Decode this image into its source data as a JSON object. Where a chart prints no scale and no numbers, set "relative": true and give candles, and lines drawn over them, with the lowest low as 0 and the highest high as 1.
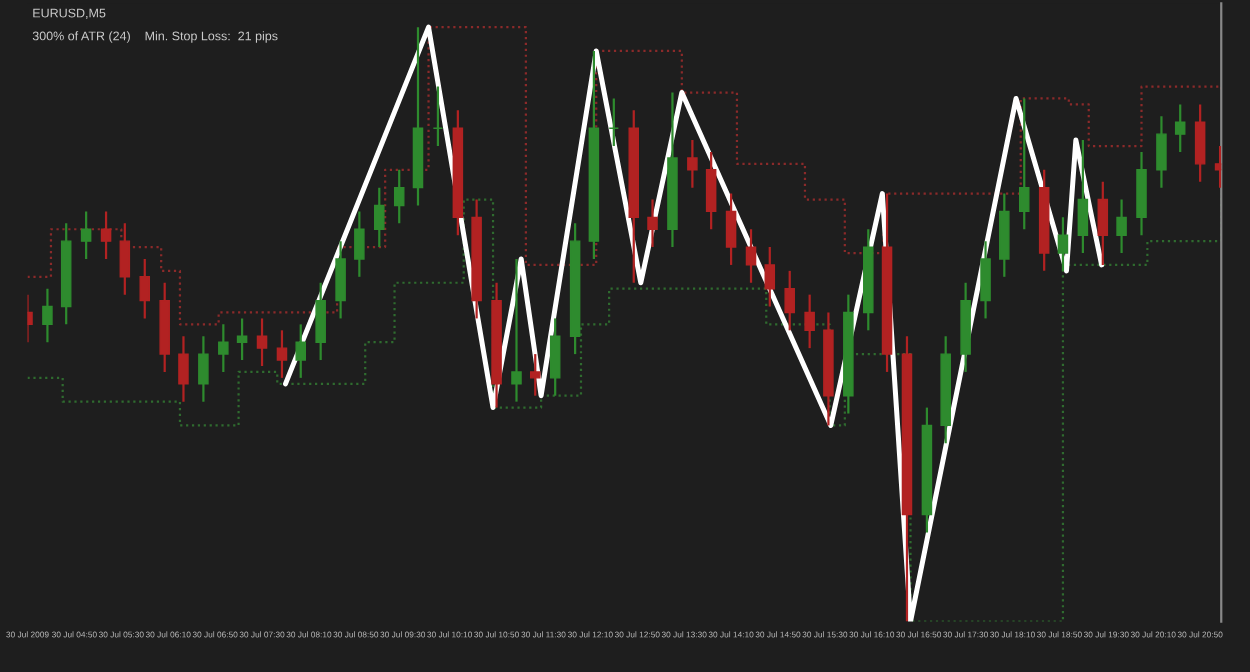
{
  "chart_data": {
    "type": "candlestick",
    "relative": true,
    "title": "EURUSD,M5",
    "annotations": [
      "300% of ATR (24)    Min. Stop Loss:  21 pips"
    ],
    "x": [
      "2009-07-30T04:10",
      "2009-07-30T04:27",
      "2009-07-30T04:43",
      "2009-07-30T05:00",
      "2009-07-30T05:17",
      "2009-07-30T05:33",
      "2009-07-30T05:50",
      "2009-07-30T06:07",
      "2009-07-30T06:23",
      "2009-07-30T06:40",
      "2009-07-30T06:57",
      "2009-07-30T07:13",
      "2009-07-30T07:30",
      "2009-07-30T07:47",
      "2009-07-30T08:03",
      "2009-07-30T08:20",
      "2009-07-30T08:37",
      "2009-07-30T08:53",
      "2009-07-30T09:10",
      "2009-07-30T09:27",
      "2009-07-30T09:43",
      "2009-07-30T10:00",
      "2009-07-30T10:17",
      "2009-07-30T10:33",
      "2009-07-30T10:50",
      "2009-07-30T11:07",
      "2009-07-30T11:23",
      "2009-07-30T11:40",
      "2009-07-30T11:57",
      "2009-07-30T12:13",
      "2009-07-30T12:30",
      "2009-07-30T12:47",
      "2009-07-30T13:03",
      "2009-07-30T13:20",
      "2009-07-30T13:37",
      "2009-07-30T13:53",
      "2009-07-30T14:10",
      "2009-07-30T14:27",
      "2009-07-30T14:43",
      "2009-07-30T15:00",
      "2009-07-30T15:17",
      "2009-07-30T15:33",
      "2009-07-30T15:50",
      "2009-07-30T16:07",
      "2009-07-30T16:23",
      "2009-07-30T16:40",
      "2009-07-30T16:57",
      "2009-07-30T17:13",
      "2009-07-30T17:30",
      "2009-07-30T17:47",
      "2009-07-30T18:03",
      "2009-07-30T18:20",
      "2009-07-30T18:37",
      "2009-07-30T18:53",
      "2009-07-30T19:10",
      "2009-07-30T19:27",
      "2009-07-30T19:43",
      "2009-07-30T20:00",
      "2009-07-30T20:17",
      "2009-07-30T20:33",
      "2009-07-30T20:50",
      "2009-07-30T21:07"
    ],
    "ohlc": [
      [
        0.52,
        0.55,
        0.47,
        0.5
      ],
      [
        0.5,
        0.56,
        0.47,
        0.53
      ],
      [
        0.53,
        0.67,
        0.5,
        0.64
      ],
      [
        0.64,
        0.69,
        0.61,
        0.66
      ],
      [
        0.66,
        0.69,
        0.61,
        0.64
      ],
      [
        0.64,
        0.67,
        0.55,
        0.58
      ],
      [
        0.58,
        0.61,
        0.51,
        0.54
      ],
      [
        0.54,
        0.57,
        0.42,
        0.45
      ],
      [
        0.45,
        0.48,
        0.37,
        0.4
      ],
      [
        0.4,
        0.48,
        0.37,
        0.45
      ],
      [
        0.45,
        0.5,
        0.42,
        0.47
      ],
      [
        0.47,
        0.51,
        0.44,
        0.48
      ],
      [
        0.48,
        0.51,
        0.43,
        0.46
      ],
      [
        0.46,
        0.49,
        0.41,
        0.44
      ],
      [
        0.44,
        0.5,
        0.41,
        0.47
      ],
      [
        0.47,
        0.57,
        0.44,
        0.54
      ],
      [
        0.54,
        0.64,
        0.51,
        0.61
      ],
      [
        0.61,
        0.69,
        0.58,
        0.66
      ],
      [
        0.66,
        0.73,
        0.63,
        0.7
      ],
      [
        0.7,
        0.76,
        0.67,
        0.73
      ],
      [
        0.73,
        1.0,
        0.7,
        0.83
      ],
      [
        0.83,
        0.9,
        0.8,
        0.83
      ],
      [
        0.83,
        0.86,
        0.65,
        0.68
      ],
      [
        0.68,
        0.71,
        0.51,
        0.54
      ],
      [
        0.54,
        0.57,
        0.36,
        0.4
      ],
      [
        0.4,
        0.61,
        0.37,
        0.42
      ],
      [
        0.42,
        0.45,
        0.38,
        0.41
      ],
      [
        0.41,
        0.51,
        0.38,
        0.48
      ],
      [
        0.48,
        0.67,
        0.45,
        0.64
      ],
      [
        0.64,
        0.96,
        0.61,
        0.83
      ],
      [
        0.83,
        0.88,
        0.8,
        0.83
      ],
      [
        0.83,
        0.86,
        0.57,
        0.68
      ],
      [
        0.68,
        0.71,
        0.63,
        0.66
      ],
      [
        0.66,
        0.89,
        0.63,
        0.78
      ],
      [
        0.78,
        0.81,
        0.73,
        0.76
      ],
      [
        0.76,
        0.79,
        0.66,
        0.69
      ],
      [
        0.69,
        0.72,
        0.6,
        0.63
      ],
      [
        0.63,
        0.66,
        0.57,
        0.6
      ],
      [
        0.6,
        0.63,
        0.53,
        0.56
      ],
      [
        0.56,
        0.59,
        0.49,
        0.52
      ],
      [
        0.52,
        0.55,
        0.46,
        0.49
      ],
      [
        0.49,
        0.52,
        0.33,
        0.38
      ],
      [
        0.38,
        0.55,
        0.35,
        0.52
      ],
      [
        0.52,
        0.66,
        0.49,
        0.63
      ],
      [
        0.63,
        0.72,
        0.42,
        0.45
      ],
      [
        0.45,
        0.48,
        0.0,
        0.18
      ],
      [
        0.18,
        0.36,
        0.15,
        0.33
      ],
      [
        0.33,
        0.48,
        0.3,
        0.45
      ],
      [
        0.45,
        0.57,
        0.42,
        0.54
      ],
      [
        0.54,
        0.64,
        0.51,
        0.61
      ],
      [
        0.61,
        0.72,
        0.58,
        0.69
      ],
      [
        0.69,
        0.88,
        0.66,
        0.73
      ],
      [
        0.73,
        0.76,
        0.59,
        0.62
      ],
      [
        0.62,
        0.68,
        0.59,
        0.65
      ],
      [
        0.65,
        0.81,
        0.62,
        0.71
      ],
      [
        0.71,
        0.74,
        0.6,
        0.65
      ],
      [
        0.65,
        0.71,
        0.62,
        0.68
      ],
      [
        0.68,
        0.79,
        0.65,
        0.76
      ],
      [
        0.76,
        0.85,
        0.73,
        0.82
      ],
      [
        0.82,
        0.87,
        0.79,
        0.84
      ],
      [
        0.84,
        0.87,
        0.74,
        0.77
      ],
      [
        0.77,
        0.8,
        0.73,
        0.76
      ]
    ],
    "series": [
      {
        "type": "step",
        "color": "#8b2a2a",
        "line_style": "dotted",
        "x": [
          "2009-07-30T04:10",
          "2009-07-30T04:30",
          "2009-07-30T05:30",
          "2009-07-30T06:04",
          "2009-07-30T06:20",
          "2009-07-30T06:53",
          "2009-07-30T08:08",
          "2009-07-30T08:34",
          "2009-07-30T09:15",
          "2009-07-30T09:52",
          "2009-07-30T11:08",
          "2009-07-30T11:15",
          "2009-07-30T12:15",
          "2009-07-30T13:28",
          "2009-07-30T14:15",
          "2009-07-30T14:40",
          "2009-07-30T15:13",
          "2009-07-30T15:47",
          "2009-07-30T16:20",
          "2009-07-30T17:43",
          "2009-07-30T18:17",
          "2009-07-30T18:58",
          "2009-07-30T19:15",
          "2009-07-30T19:56",
          "2009-07-30T20:00",
          "2009-07-30T21:08"
        ],
        "values": [
          0.58,
          0.66,
          0.63,
          0.59,
          0.5,
          0.52,
          0.52,
          0.63,
          0.76,
          1.0,
          1.0,
          0.6,
          0.96,
          0.89,
          0.77,
          0.77,
          0.71,
          0.62,
          0.72,
          0.72,
          0.88,
          0.87,
          0.8,
          0.8,
          0.9,
          0.89
        ]
      },
      {
        "type": "step",
        "color": "#2f6b2f",
        "line_style": "dotted",
        "x": [
          "2009-07-30T04:10",
          "2009-07-30T04:40",
          "2009-07-30T06:20",
          "2009-07-30T07:10",
          "2009-07-30T07:43",
          "2009-07-30T08:34",
          "2009-07-30T08:58",
          "2009-07-30T09:23",
          "2009-07-30T10:22",
          "2009-07-30T10:47",
          "2009-07-30T11:28",
          "2009-07-30T12:02",
          "2009-07-30T12:26",
          "2009-07-30T12:53",
          "2009-07-30T14:40",
          "2009-07-30T15:34",
          "2009-07-30T15:47",
          "2009-07-30T16:43",
          "2009-07-30T18:50",
          "2009-07-30T18:53",
          "2009-07-30T20:05",
          "2009-07-30T21:08"
        ],
        "values": [
          0.41,
          0.37,
          0.33,
          0.42,
          0.4,
          0.4,
          0.47,
          0.57,
          0.71,
          0.36,
          0.38,
          0.5,
          0.56,
          0.56,
          0.5,
          0.33,
          0.45,
          0.0,
          0.0,
          0.6,
          0.64,
          0.72
        ]
      },
      {
        "type": "line",
        "color": "#ffffff",
        "line_style": "solid",
        "x": [
          "2009-07-30T07:50",
          "2009-07-30T09:52",
          "2009-07-30T10:47",
          "2009-07-30T11:11",
          "2009-07-30T11:28",
          "2009-07-30T12:15",
          "2009-07-30T12:53",
          "2009-07-30T13:28",
          "2009-07-30T15:35",
          "2009-07-30T16:19",
          "2009-07-30T16:43",
          "2009-07-30T18:13",
          "2009-07-30T18:56",
          "2009-07-30T19:04",
          "2009-07-30T19:26"
        ],
        "values": [
          0.4,
          1.0,
          0.36,
          0.61,
          0.38,
          0.96,
          0.57,
          0.89,
          0.33,
          0.72,
          0.0,
          0.88,
          0.59,
          0.81,
          0.6
        ]
      }
    ],
    "xlim": [
      "2009-07-30T04:10",
      "2009-07-30T21:08"
    ],
    "xticks": [
      {
        "value": "2009-07-30T04:10",
        "label": "30 Jul 2009"
      },
      {
        "value": "2009-07-30T04:50",
        "label": "30 Jul 04:50"
      },
      {
        "value": "2009-07-30T05:30",
        "label": "30 Jul 05:30"
      },
      {
        "value": "2009-07-30T06:10",
        "label": "30 Jul 06:10"
      },
      {
        "value": "2009-07-30T06:50",
        "label": "30 Jul 06:50"
      },
      {
        "value": "2009-07-30T07:30",
        "label": "30 Jul 07:30"
      },
      {
        "value": "2009-07-30T08:10",
        "label": "30 Jul 08:10"
      },
      {
        "value": "2009-07-30T08:50",
        "label": "30 Jul 08:50"
      },
      {
        "value": "2009-07-30T09:30",
        "label": "30 Jul 09:30"
      },
      {
        "value": "2009-07-30T10:10",
        "label": "30 Jul 10:10"
      },
      {
        "value": "2009-07-30T10:50",
        "label": "30 Jul 10:50"
      },
      {
        "value": "2009-07-30T11:30",
        "label": "30 Jul 11:30"
      },
      {
        "value": "2009-07-30T12:10",
        "label": "30 Jul 12:10"
      },
      {
        "value": "2009-07-30T12:50",
        "label": "30 Jul 12:50"
      },
      {
        "value": "2009-07-30T13:30",
        "label": "30 Jul 13:30"
      },
      {
        "value": "2009-07-30T14:10",
        "label": "30 Jul 14:10"
      },
      {
        "value": "2009-07-30T14:50",
        "label": "30 Jul 14:50"
      },
      {
        "value": "2009-07-30T15:30",
        "label": "30 Jul 15:30"
      },
      {
        "value": "2009-07-30T16:10",
        "label": "30 Jul 16:10"
      },
      {
        "value": "2009-07-30T16:50",
        "label": "30 Jul 16:50"
      },
      {
        "value": "2009-07-30T17:30",
        "label": "30 Jul 17:30"
      },
      {
        "value": "2009-07-30T18:10",
        "label": "30 Jul 18:10"
      },
      {
        "value": "2009-07-30T18:50",
        "label": "30 Jul 18:50"
      },
      {
        "value": "2009-07-30T19:30",
        "label": "30 Jul 19:30"
      },
      {
        "value": "2009-07-30T20:10",
        "label": "30 Jul 20:10"
      },
      {
        "value": "2009-07-30T20:50",
        "label": "30 Jul 20:50"
      }
    ]
  }
}
